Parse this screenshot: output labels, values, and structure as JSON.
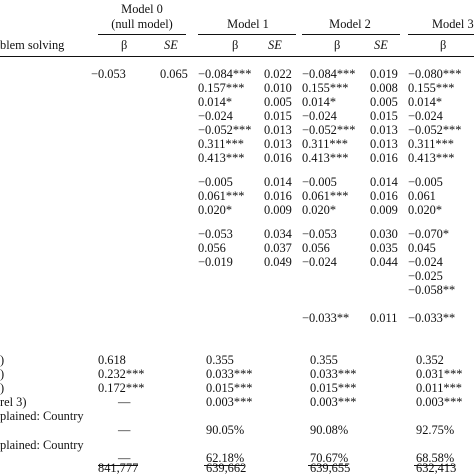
{
  "header": {
    "model0_line1": "Model 0",
    "model0_line2": "(null model)",
    "model1": "Model 1",
    "model2": "Model 2",
    "model3": "Model 3.",
    "row_label": "blem solving",
    "beta": "β",
    "se": "SE"
  },
  "rows": [
    {
      "m0b": "−0.053",
      "m0s": "0.065",
      "m1b": "−0.084***",
      "m1s": "0.022",
      "m2b": "−0.084***",
      "m2s": "0.019",
      "m3b": "−0.080***"
    },
    {
      "m0b": "",
      "m0s": "",
      "m1b": "0.157***",
      "m1s": "0.010",
      "m2b": "0.155***",
      "m2s": "0.008",
      "m3b": "0.155***"
    },
    {
      "m0b": "",
      "m0s": "",
      "m1b": "0.014*",
      "m1s": "0.005",
      "m2b": "0.014*",
      "m2s": "0.005",
      "m3b": "0.014*"
    },
    {
      "m0b": "",
      "m0s": "",
      "m1b": "−0.024",
      "m1s": "0.015",
      "m2b": "−0.024",
      "m2s": "0.015",
      "m3b": "−0.024"
    },
    {
      "m0b": "",
      "m0s": "",
      "m1b": "−0.052***",
      "m1s": "0.013",
      "m2b": "−0.052***",
      "m2s": "0.013",
      "m3b": "−0.052***"
    },
    {
      "m0b": "",
      "m0s": "",
      "m1b": "0.311***",
      "m1s": "0.013",
      "m2b": "0.311***",
      "m2s": "0.013",
      "m3b": "0.311***"
    },
    {
      "m0b": "",
      "m0s": "",
      "m1b": "0.413***",
      "m1s": "0.016",
      "m2b": "0.413***",
      "m2s": "0.016",
      "m3b": "0.413***"
    },
    {
      "m0b": "",
      "m0s": "",
      "m1b": "−0.005",
      "m1s": "0.014",
      "m2b": "−0.005",
      "m2s": "0.014",
      "m3b": "−0.005"
    },
    {
      "m0b": "",
      "m0s": "",
      "m1b": "0.061***",
      "m1s": "0.016",
      "m2b": "0.061***",
      "m2s": "0.016",
      "m3b": "0.061"
    },
    {
      "m0b": "",
      "m0s": "",
      "m1b": "0.020*",
      "m1s": "0.009",
      "m2b": "0.020*",
      "m2s": "0.009",
      "m3b": "0.020*"
    },
    {
      "m0b": "",
      "m0s": "",
      "m1b": "−0.053",
      "m1s": "0.034",
      "m2b": "−0.053",
      "m2s": "0.030",
      "m3b": "−0.070*"
    },
    {
      "m0b": "",
      "m0s": "",
      "m1b": "0.056",
      "m1s": "0.037",
      "m2b": "0.056",
      "m2s": "0.035",
      "m3b": "0.045"
    },
    {
      "m0b": "",
      "m0s": "",
      "m1b": "−0.019",
      "m1s": "0.049",
      "m2b": "−0.024",
      "m2s": "0.044",
      "m3b": "−0.024"
    },
    {
      "m0b": "",
      "m0s": "",
      "m1b": "",
      "m1s": "",
      "m2b": "",
      "m2s": "",
      "m3b": "−0.025"
    },
    {
      "m0b": "",
      "m0s": "",
      "m1b": "",
      "m1s": "",
      "m2b": "",
      "m2s": "",
      "m3b": "−0.058**"
    },
    {
      "m0b": "",
      "m0s": "",
      "m1b": "",
      "m1s": "",
      "m2b": "−0.033**",
      "m2s": "0.011",
      "m3b": "−0.033**"
    }
  ],
  "variance": [
    {
      "label": ")",
      "m0b": "0.618",
      "m1b": "0.355",
      "m2b": "0.355",
      "m3b": "0.352"
    },
    {
      "label": ")",
      "m0b": "0.232***",
      "m1b": "0.033***",
      "m2b": "0.033***",
      "m3b": "0.031***"
    },
    {
      "label": ")",
      "m0b": "0.172***",
      "m1b": "0.015***",
      "m2b": "0.015***",
      "m3b": "0.011***"
    },
    {
      "label": "rel 3)",
      "m0b": "—",
      "m1b": "0.003***",
      "m2b": "0.003***",
      "m3b": "0.003***"
    }
  ],
  "explained": [
    {
      "label": "plained: Country",
      "m0b": "—",
      "m1b": "90.05%",
      "m2b": "90.08%",
      "m3b": "92.75%"
    },
    {
      "label": "plained: Country",
      "m0b": "—",
      "m1b": "62.18%",
      "m2b": "70.67%",
      "m3b": "68.58%"
    }
  ],
  "bottom": {
    "m0b": "841,777",
    "m1b": "639,662",
    "m2b": "639,655",
    "m3b": "632,413"
  }
}
